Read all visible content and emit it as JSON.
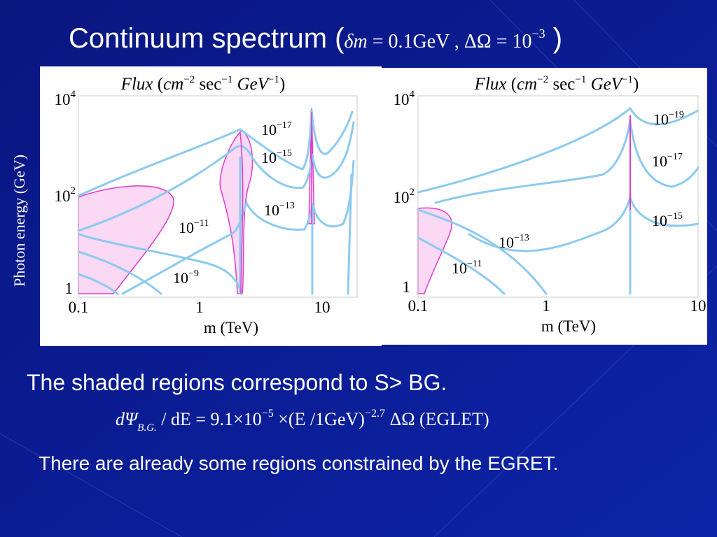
{
  "title": {
    "text": "Continuum spectrum (",
    "math_dm": "δm",
    "math_eq1": " = 0.1GeV ,   ",
    "math_do": "ΔΩ",
    "math_eq2": " = 10",
    "math_sup": "−3",
    "close": " )"
  },
  "y_axis_label": "Photon energy (GeV)",
  "plots": [
    {
      "header": {
        "flux": "Flux",
        "open": " (",
        "cm": "cm",
        "e1": "−2",
        "sec": " sec",
        "e2": "−1",
        "gev": " GeV",
        "e3": "−1",
        "close": ")"
      },
      "y_ticks": [
        {
          "base": "10",
          "exp": "4"
        },
        {
          "base": "10",
          "exp": "2"
        },
        {
          "base": "1"
        }
      ],
      "x_ticks": [
        "0.1",
        "1",
        "10"
      ],
      "x_label": "m (TeV)",
      "contour_labels": [
        {
          "base": "10",
          "exp": "−17"
        },
        {
          "base": "10",
          "exp": "−15"
        },
        {
          "base": "10",
          "exp": "−13"
        },
        {
          "base": "10",
          "exp": "−11"
        },
        {
          "base": "10",
          "exp": "−9"
        }
      ]
    },
    {
      "header": {
        "flux": "Flux",
        "open": " (",
        "cm": "cm",
        "e1": "−2",
        "sec": " sec",
        "e2": "−1",
        "gev": " GeV",
        "e3": "−1",
        "close": ")"
      },
      "y_ticks": [
        {
          "base": "10",
          "exp": "4"
        },
        {
          "base": "10",
          "exp": "2"
        },
        {
          "base": "1"
        }
      ],
      "x_ticks": [
        "0.1",
        "1",
        "10"
      ],
      "x_label": "m (TeV)",
      "contour_labels": [
        {
          "base": "10",
          "exp": "−19"
        },
        {
          "base": "10",
          "exp": "−17"
        },
        {
          "base": "10",
          "exp": "−15"
        },
        {
          "base": "10",
          "exp": "−13"
        },
        {
          "base": "10",
          "exp": "−11"
        }
      ]
    }
  ],
  "text1": "The shaded regions correspond to S> BG.",
  "equation": {
    "d": "dΨ",
    "sub": "B.G.",
    "mid": " / dE =    9.1×10",
    "sup1": "−5",
    "mid2": " ×(E /1GeV)",
    "sup2": "−2.7",
    "end": " ΔΩ  (EGLET)"
  },
  "text2": "There are already some regions constrained by the EGRET."
}
